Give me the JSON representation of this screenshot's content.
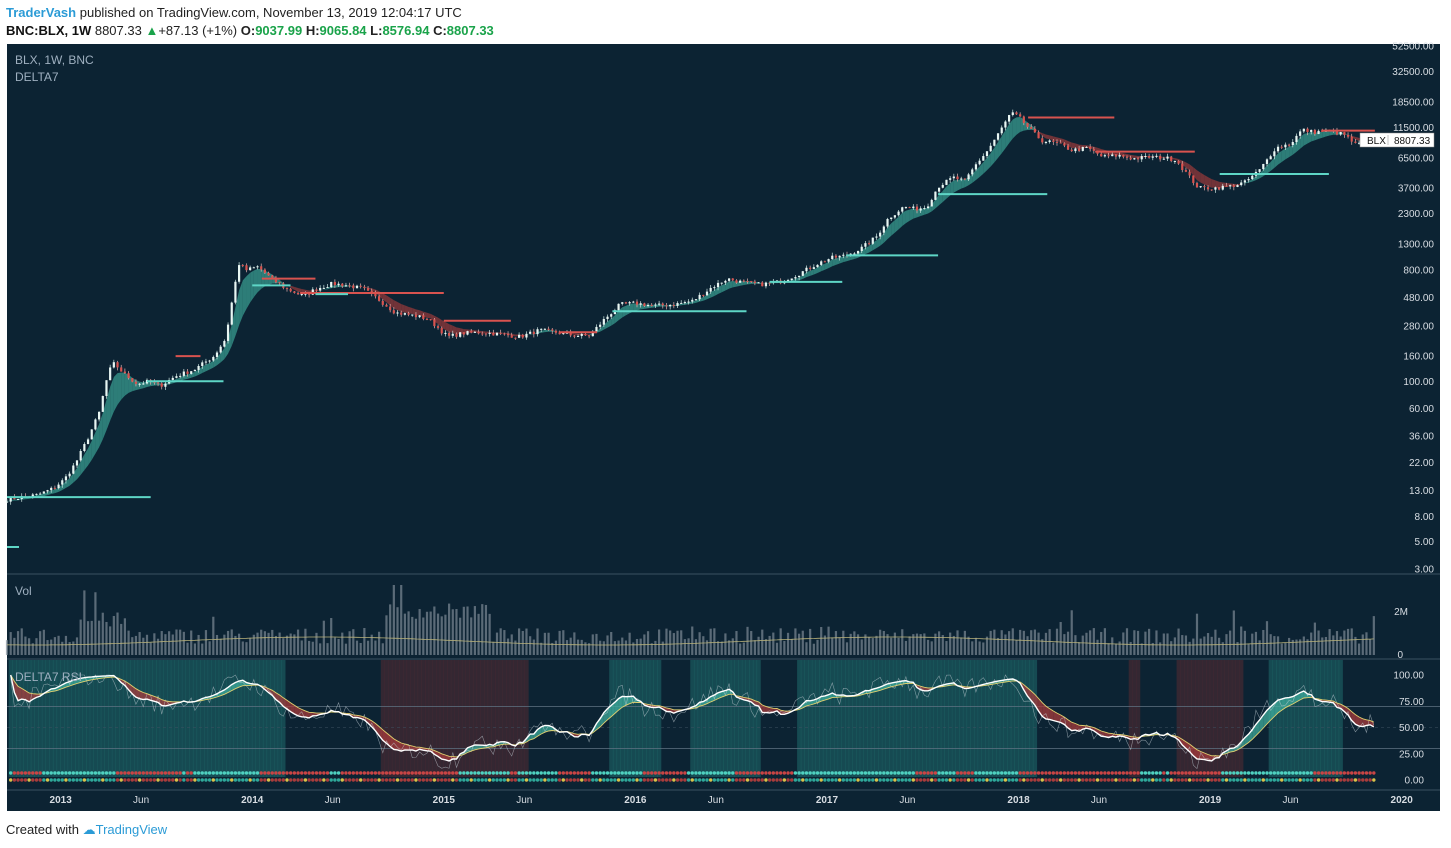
{
  "header": {
    "author": "TraderVash",
    "published_text": "published on TradingView.com, November 13, 2019 12:04:17 UTC",
    "symbol": "BNC:BLX, 1W",
    "last_price": "8807.33",
    "change_arrow": "▲",
    "change": "+87.13 (+1%)",
    "open_label": "O:",
    "open": "9037.99",
    "high_label": "H:",
    "high": "9065.84",
    "low_label": "L:",
    "low": "8576.94",
    "close_label": "C:",
    "close": "8807.33"
  },
  "panes": {
    "main_title": "BLX, 1W, BNC",
    "main_indicator": "DELTA7",
    "volume_title": "Vol",
    "rsi_title": "DELTA7 RSI"
  },
  "price_tag": {
    "symbol": "BLX",
    "value": "8807.33"
  },
  "footer": {
    "created_with": "Created with",
    "brand": "TradingView"
  },
  "colors": {
    "background": "#0c2333",
    "bull": "#5ed6c6",
    "bear": "#d9534f",
    "fill_bull": "#3fae9e",
    "fill_bear": "#a83c3c",
    "ma": "#e0d070",
    "volume": "#7d8a95",
    "rsi_line": "#ffffff",
    "teal_band": "#1f6b6b",
    "red_band": "#4a2a33"
  },
  "chart_data": {
    "type": "line",
    "title": "BLX, 1W, BNC",
    "scale": "log",
    "ylim": [
      3,
      52500
    ],
    "y_ticks": [
      "52500.00",
      "32500.00",
      "18500.00",
      "11500.00",
      "6500.00",
      "3700.00",
      "2300.00",
      "1300.00",
      "800.00",
      "480.00",
      "280.00",
      "160.00",
      "100.00",
      "60.00",
      "36.00",
      "22.00",
      "13.00",
      "8.00",
      "5.00",
      "3.00"
    ],
    "y_tick_values": [
      52500,
      32500,
      18500,
      11500,
      6500,
      3700,
      2300,
      1300,
      800,
      480,
      280,
      160,
      100,
      60,
      36,
      22,
      13,
      8,
      5,
      3
    ],
    "x_ticks": [
      "2013",
      "Jun",
      "2014",
      "Jun",
      "2015",
      "Jun",
      "2016",
      "Jun",
      "2017",
      "Jun",
      "2018",
      "Jun",
      "2019",
      "Jun",
      "2020"
    ],
    "x_tick_values": [
      2013.0,
      2013.42,
      2014.0,
      2014.42,
      2015.0,
      2015.42,
      2016.0,
      2016.42,
      2017.0,
      2017.42,
      2018.0,
      2018.42,
      2019.0,
      2019.42,
      2020.0
    ],
    "series": [
      {
        "values": [
          [
            2012.72,
            11
          ],
          [
            2012.8,
            11.5
          ],
          [
            2012.88,
            12
          ],
          [
            2012.96,
            13.5
          ],
          [
            2013.02,
            16
          ],
          [
            2013.08,
            22
          ],
          [
            2013.14,
            34
          ],
          [
            2013.2,
            55
          ],
          [
            2013.25,
            120
          ],
          [
            2013.28,
            140
          ],
          [
            2013.33,
            115
          ],
          [
            2013.4,
            95
          ],
          [
            2013.46,
            100
          ],
          [
            2013.52,
            92
          ],
          [
            2013.6,
            110
          ],
          [
            2013.7,
            125
          ],
          [
            2013.8,
            160
          ],
          [
            2013.86,
            220
          ],
          [
            2013.9,
            500
          ],
          [
            2013.93,
            900
          ],
          [
            2013.97,
            800
          ],
          [
            2014.03,
            850
          ],
          [
            2014.1,
            680
          ],
          [
            2014.18,
            560
          ],
          [
            2014.27,
            490
          ],
          [
            2014.33,
            560
          ],
          [
            2014.42,
            620
          ],
          [
            2014.5,
            600
          ],
          [
            2014.58,
            560
          ],
          [
            2014.66,
            460
          ],
          [
            2014.75,
            360
          ],
          [
            2014.85,
            340
          ],
          [
            2014.92,
            320
          ],
          [
            2015.02,
            230
          ],
          [
            2015.1,
            245
          ],
          [
            2015.2,
            250
          ],
          [
            2015.3,
            240
          ],
          [
            2015.4,
            230
          ],
          [
            2015.5,
            260
          ],
          [
            2015.58,
            250
          ],
          [
            2015.68,
            235
          ],
          [
            2015.76,
            235
          ],
          [
            2015.84,
            320
          ],
          [
            2015.92,
            420
          ],
          [
            2016.0,
            430
          ],
          [
            2016.1,
            410
          ],
          [
            2016.2,
            420
          ],
          [
            2016.3,
            450
          ],
          [
            2016.4,
            580
          ],
          [
            2016.48,
            680
          ],
          [
            2016.55,
            640
          ],
          [
            2016.65,
            610
          ],
          [
            2016.75,
            640
          ],
          [
            2016.85,
            740
          ],
          [
            2016.95,
            900
          ],
          [
            2017.02,
            1000
          ],
          [
            2017.1,
            1050
          ],
          [
            2017.18,
            1200
          ],
          [
            2017.26,
            1500
          ],
          [
            2017.32,
            2100
          ],
          [
            2017.4,
            2600
          ],
          [
            2017.46,
            2500
          ],
          [
            2017.52,
            2600
          ],
          [
            2017.58,
            3800
          ],
          [
            2017.66,
            4500
          ],
          [
            2017.72,
            4200
          ],
          [
            2017.78,
            5800
          ],
          [
            2017.84,
            7500
          ],
          [
            2017.9,
            10500
          ],
          [
            2017.96,
            15000
          ],
          [
            2018.0,
            14000
          ],
          [
            2018.06,
            11000
          ],
          [
            2018.12,
            9000
          ],
          [
            2018.2,
            8500
          ],
          [
            2018.28,
            7500
          ],
          [
            2018.36,
            7800
          ],
          [
            2018.44,
            6600
          ],
          [
            2018.52,
            6800
          ],
          [
            2018.6,
            6400
          ],
          [
            2018.68,
            6600
          ],
          [
            2018.76,
            6500
          ],
          [
            2018.82,
            6300
          ],
          [
            2018.88,
            4800
          ],
          [
            2018.94,
            3700
          ],
          [
            2019.02,
            3700
          ],
          [
            2019.1,
            3800
          ],
          [
            2019.18,
            4100
          ],
          [
            2019.26,
            5200
          ],
          [
            2019.34,
            7800
          ],
          [
            2019.42,
            8500
          ],
          [
            2019.48,
            11000
          ],
          [
            2019.54,
            10500
          ],
          [
            2019.62,
            10800
          ],
          [
            2019.7,
            10000
          ],
          [
            2019.76,
            8300
          ],
          [
            2019.82,
            8700
          ],
          [
            2019.87,
            8807
          ]
        ]
      }
    ],
    "volume": {
      "y_ticks": [
        "2M",
        "0"
      ],
      "y_tick_values": [
        2000000,
        0
      ]
    },
    "rsi": {
      "y_ticks": [
        "100.00",
        "75.00",
        "50.00",
        "25.00",
        "0.00"
      ],
      "y_tick_values": [
        100,
        75,
        50,
        25,
        0
      ],
      "bands": [
        70,
        30
      ]
    }
  }
}
